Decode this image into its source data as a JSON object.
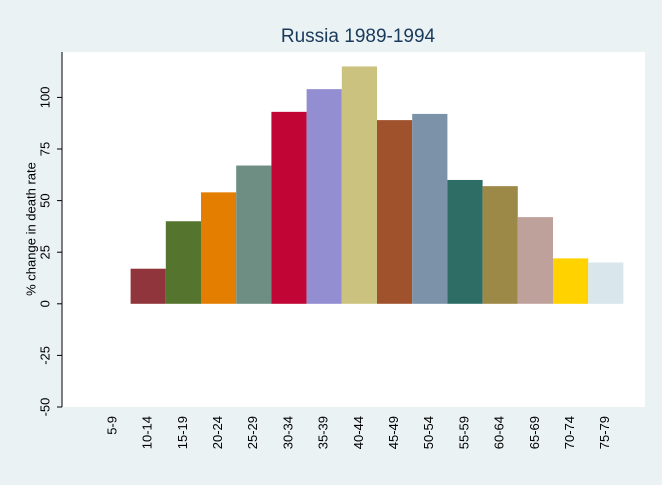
{
  "chart_data": {
    "type": "bar",
    "title": "Russia 1989-1994",
    "y_label": "% change in death rate",
    "categories": [
      "5-9",
      "10-14",
      "15-19",
      "20-24",
      "25-29",
      "30-34",
      "35-39",
      "40-44",
      "45-49",
      "50-54",
      "55-59",
      "60-64",
      "65-69",
      "70-74",
      "75-79"
    ],
    "values": [
      0,
      17,
      40,
      54,
      67,
      93,
      104,
      115,
      89,
      92,
      60,
      57,
      42,
      22,
      20
    ],
    "colors": [
      "#1a476f",
      "#90353b",
      "#55752f",
      "#e37e00",
      "#6e8e84",
      "#c10534",
      "#938dd2",
      "#cac27e",
      "#a0522d",
      "#7b92a8",
      "#2d6d66",
      "#9c8847",
      "#bfa19c",
      "#ffd200",
      "#d9e6eb"
    ],
    "ylim": [
      -50,
      122
    ],
    "yticks": [
      -50,
      -25,
      0,
      25,
      50,
      75,
      100
    ]
  }
}
